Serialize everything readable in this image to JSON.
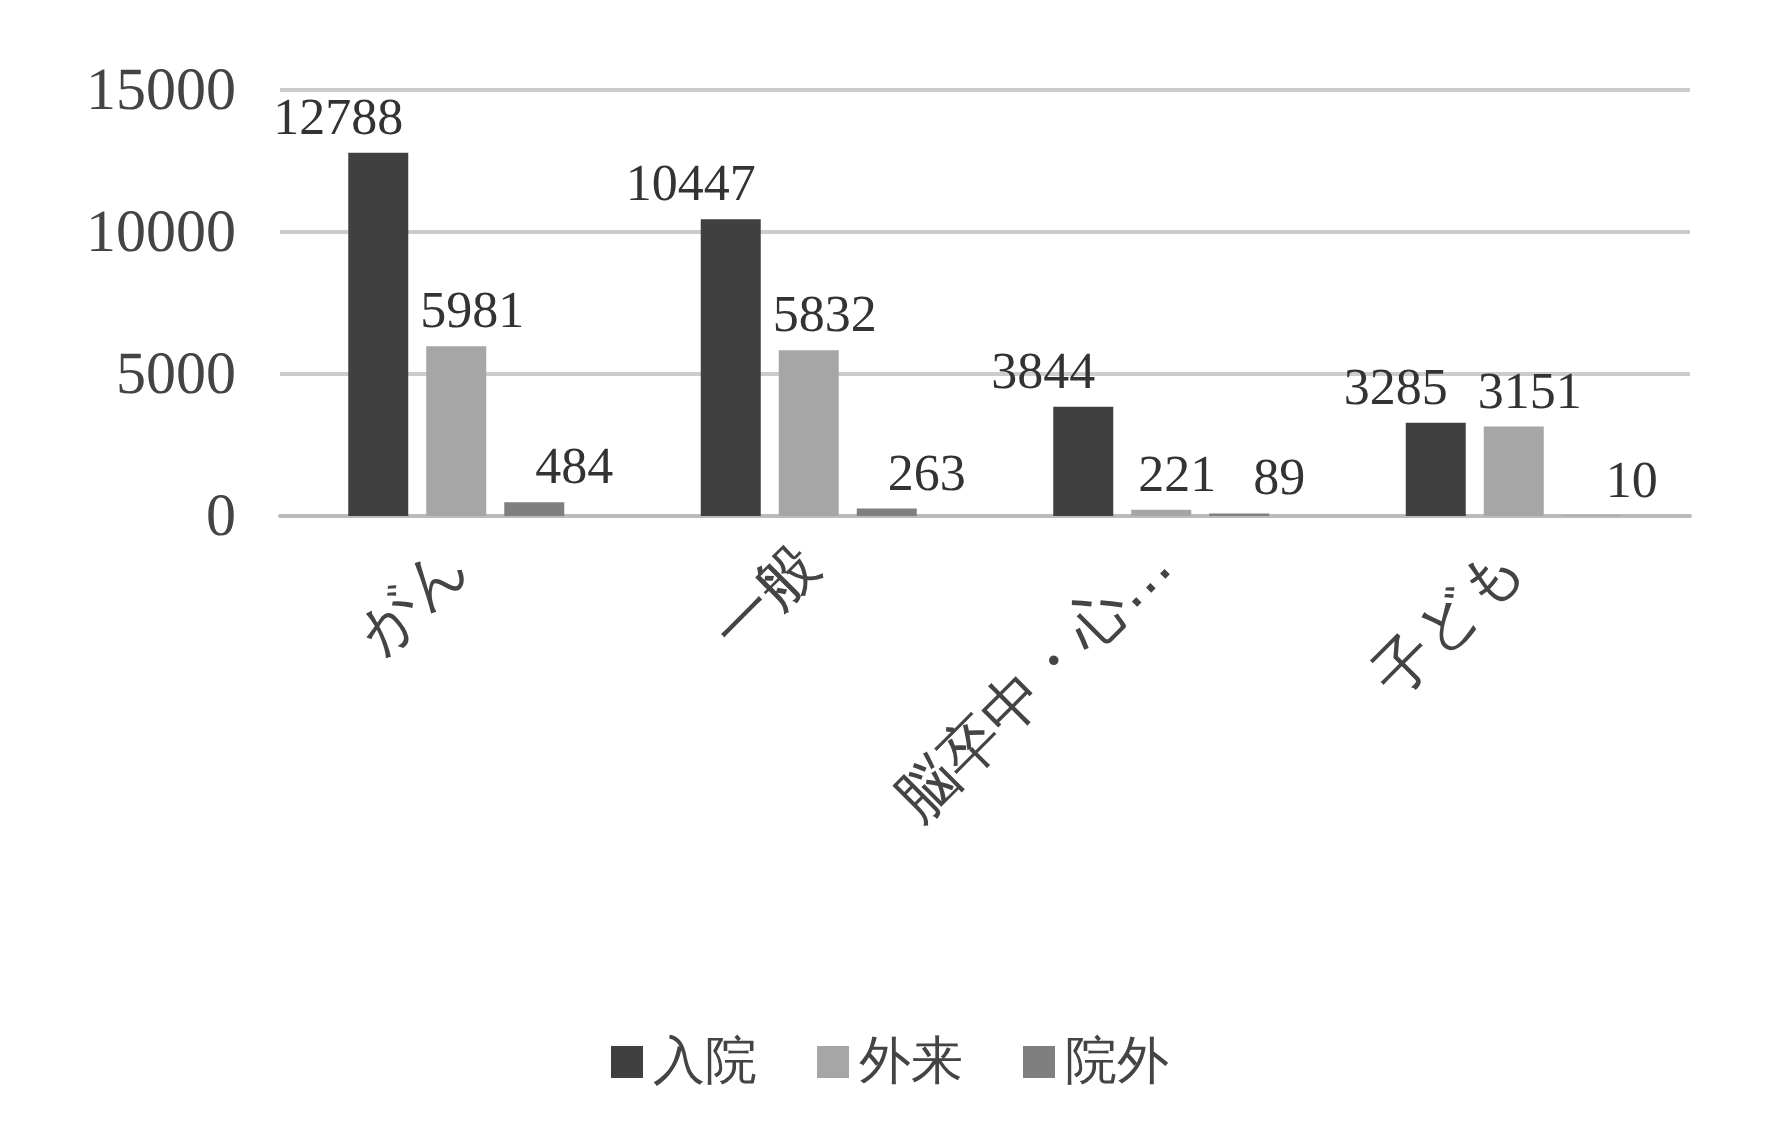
{
  "chart_data": {
    "type": "bar",
    "categories": [
      "がん",
      "一般",
      "脳卒中・心…",
      "子ども"
    ],
    "series": [
      {
        "name": "入院",
        "color": "#404040",
        "values": [
          12788,
          10447,
          3844,
          3285
        ]
      },
      {
        "name": "外来",
        "color": "#a6a6a6",
        "values": [
          5981,
          5832,
          221,
          3151
        ]
      },
      {
        "name": "院外",
        "color": "#7f7f7f",
        "values": [
          484,
          263,
          89,
          10
        ]
      }
    ],
    "ylim": [
      0,
      15000
    ],
    "yticks": [
      0,
      5000,
      10000,
      15000
    ],
    "grid": "y",
    "legend": "bottom",
    "data_labels": true
  }
}
